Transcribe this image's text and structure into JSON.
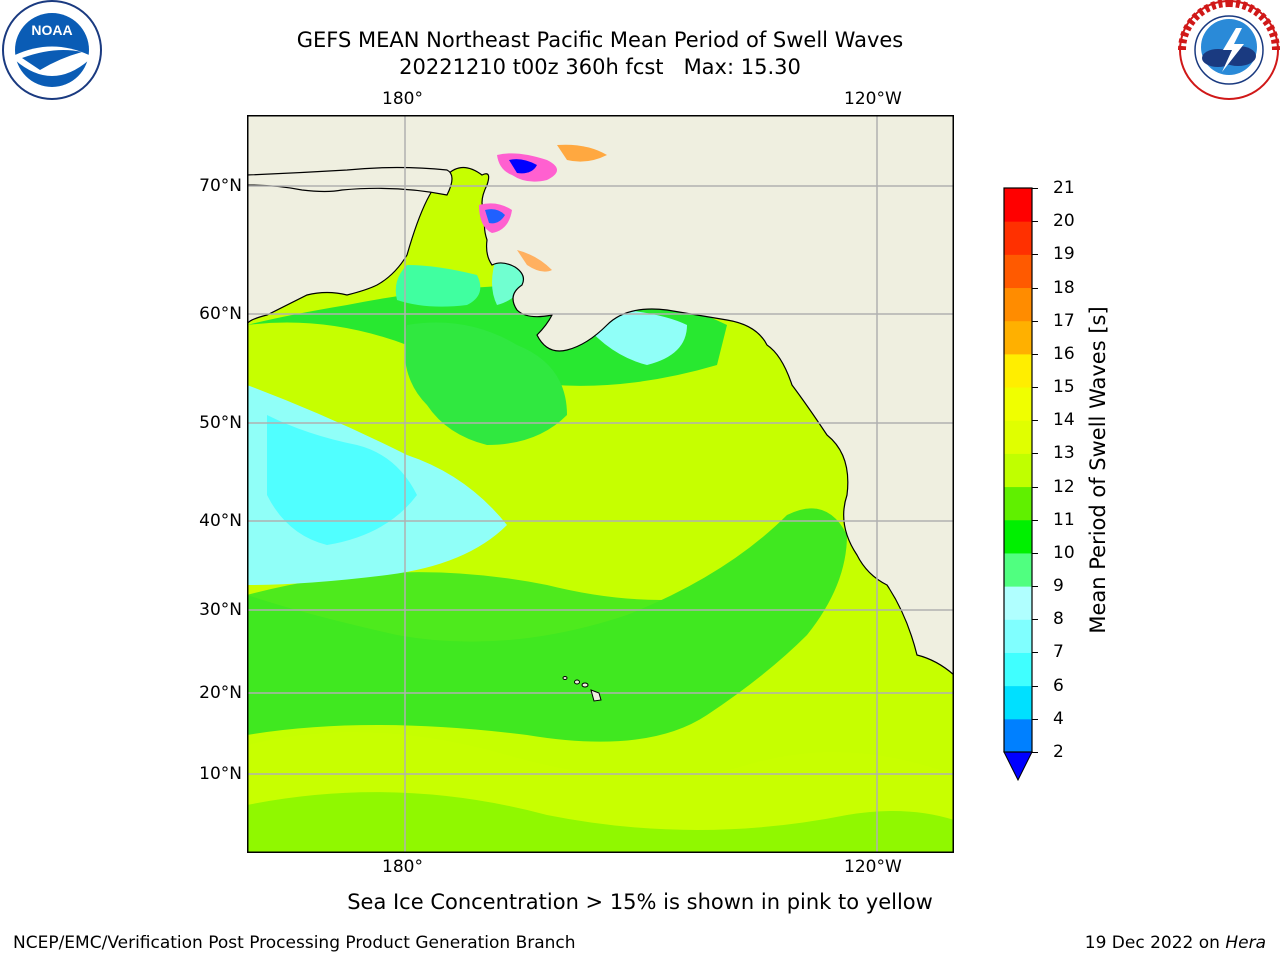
{
  "title": {
    "line1": "GEFS MEAN Northeast Pacific Mean Period of Swell Waves",
    "line2": "20221210 t00z 360h fcst   Max: 15.30"
  },
  "logos": {
    "left": {
      "name": "noaa-logo",
      "text": "NOAA",
      "ring_text": "NATIONAL OCEANIC AND ATMOSPHERIC ADMINISTRATION · U.S. DEPARTMENT OF COMMERCE"
    },
    "right": {
      "name": "nws-logo",
      "ring_text": "NATIONAL WEATHER SERVICE"
    }
  },
  "map": {
    "lon_labels_top": [
      "180°",
      "120°W"
    ],
    "lon_labels_bottom": [
      "180°",
      "120°W"
    ],
    "lat_labels": [
      "70°N",
      "60°N",
      "50°N",
      "40°N",
      "30°N",
      "20°N",
      "10°N"
    ],
    "land_color": "#efefe0",
    "gridline_color": "#b0b0b0"
  },
  "colorbar": {
    "label": "Mean Period of Swell Waves [s]",
    "ticks": [
      "2",
      "4",
      "6",
      "7",
      "8",
      "9",
      "10",
      "11",
      "12",
      "13",
      "14",
      "15",
      "16",
      "17",
      "18",
      "19",
      "20",
      "21"
    ],
    "under_color": "#0000ff",
    "colors": [
      "#0080ff",
      "#00e0ff",
      "#40ffff",
      "#80ffff",
      "#b0ffff",
      "#50ff80",
      "#00f000",
      "#60f000",
      "#c0ff00",
      "#e0ff00",
      "#f0ff00",
      "#ffee00",
      "#ffb000",
      "#ff8c00",
      "#ff5a00",
      "#ff3000",
      "#ff0000"
    ]
  },
  "footer": {
    "ice_note": "Sea Ice Concentration > 15% is shown in pink to yellow",
    "credit_left": "NCEP/EMC/Verification Post Processing Product Generation Branch",
    "credit_right_prefix": "19 Dec 2022 on ",
    "credit_right_host": "Hera"
  }
}
